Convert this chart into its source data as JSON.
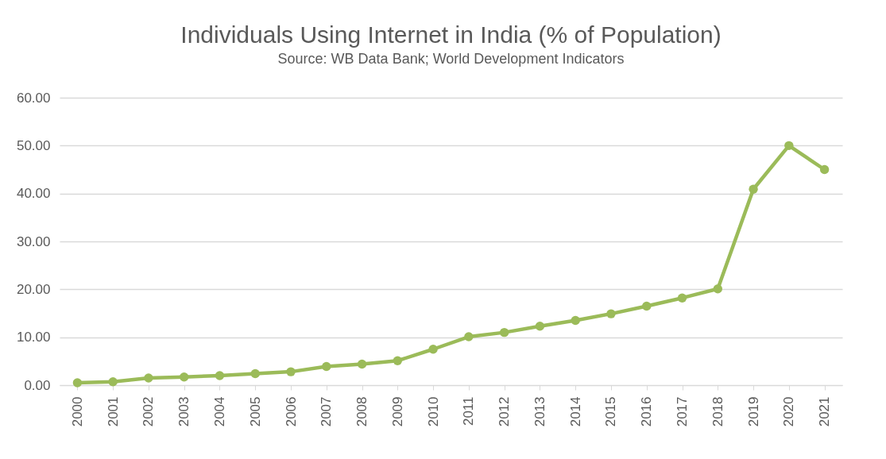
{
  "chart_data": {
    "type": "line",
    "title": "Individuals Using Internet in India (% of Population)",
    "subtitle": "Source: WB Data Bank; World Development Indicators",
    "categories": [
      "2000",
      "2001",
      "2002",
      "2003",
      "2004",
      "2005",
      "2006",
      "2007",
      "2008",
      "2009",
      "2010",
      "2011",
      "2012",
      "2013",
      "2014",
      "2015",
      "2016",
      "2017",
      "2018",
      "2019",
      "2020",
      "2021"
    ],
    "series": [
      {
        "color": "#9bbb59",
        "values": [
          0.5,
          0.7,
          1.5,
          1.7,
          2.0,
          2.4,
          2.8,
          3.9,
          4.4,
          5.1,
          7.5,
          10.1,
          11.0,
          12.3,
          13.5,
          14.9,
          16.5,
          18.2,
          20.1,
          40.9,
          50.0,
          45.0
        ]
      }
    ],
    "ylim": [
      0,
      60
    ],
    "yticks": [
      {
        "value": 0,
        "label": "0.00"
      },
      {
        "value": 10,
        "label": "10.00"
      },
      {
        "value": 20,
        "label": "20.00"
      },
      {
        "value": 30,
        "label": "30.00"
      },
      {
        "value": 40,
        "label": "40.00"
      },
      {
        "value": 50,
        "label": "50.00"
      },
      {
        "value": 60,
        "label": "60.00"
      }
    ],
    "grid": "y",
    "marker": "circle"
  }
}
